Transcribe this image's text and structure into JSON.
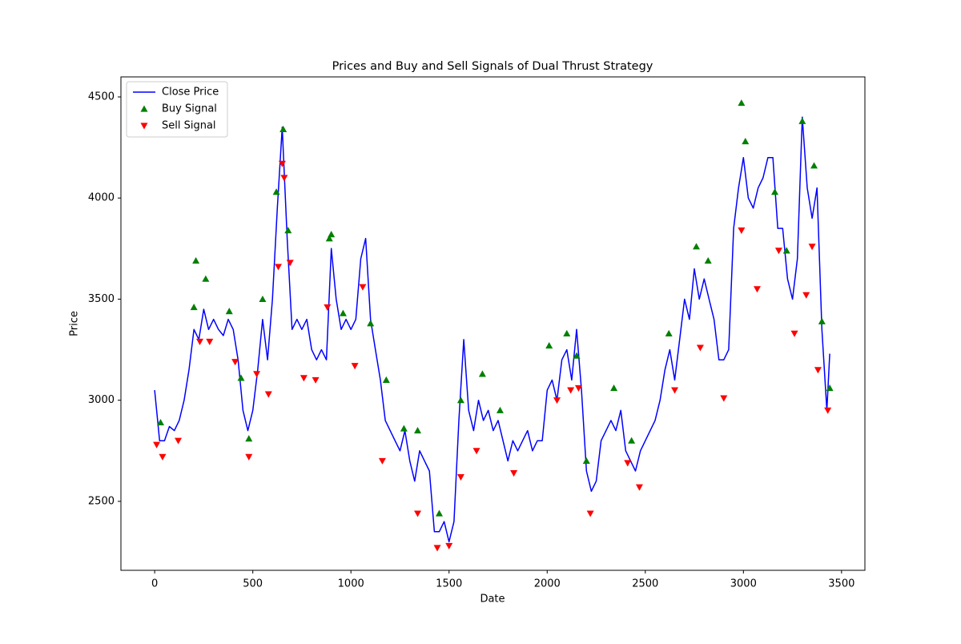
{
  "chart_data": {
    "type": "line",
    "title": "Prices and Buy and Sell Signals of Dual Thrust Strategy",
    "x_label": "Date",
    "y_label": "Price",
    "xlim": [
      -172,
      3619
    ],
    "ylim": [
      2159,
      4599
    ],
    "xticks": [
      0,
      500,
      1000,
      1500,
      2000,
      2500,
      3000,
      3500
    ],
    "yticks": [
      2500,
      3000,
      3500,
      4000,
      4500
    ],
    "grid": false,
    "legend": "upper left",
    "series": [
      {
        "name": "Close Price",
        "type": "line",
        "color": "#0000ff",
        "x": [
          0,
          25,
          50,
          75,
          100,
          125,
          150,
          175,
          200,
          225,
          250,
          275,
          300,
          325,
          350,
          375,
          400,
          425,
          450,
          475,
          500,
          525,
          550,
          575,
          600,
          625,
          650,
          675,
          700,
          725,
          750,
          775,
          800,
          825,
          850,
          875,
          900,
          925,
          950,
          975,
          1000,
          1025,
          1050,
          1075,
          1100,
          1125,
          1150,
          1175,
          1200,
          1225,
          1250,
          1275,
          1300,
          1325,
          1350,
          1375,
          1400,
          1425,
          1450,
          1475,
          1500,
          1525,
          1550,
          1575,
          1600,
          1625,
          1650,
          1675,
          1700,
          1725,
          1750,
          1775,
          1800,
          1825,
          1850,
          1875,
          1900,
          1925,
          1950,
          1975,
          2000,
          2025,
          2050,
          2075,
          2100,
          2125,
          2150,
          2175,
          2200,
          2225,
          2250,
          2275,
          2300,
          2325,
          2350,
          2375,
          2400,
          2425,
          2450,
          2475,
          2500,
          2525,
          2550,
          2575,
          2600,
          2625,
          2650,
          2675,
          2700,
          2725,
          2750,
          2775,
          2800,
          2825,
          2850,
          2875,
          2900,
          2925,
          2950,
          2975,
          3000,
          3025,
          3050,
          3075,
          3100,
          3125,
          3150,
          3175,
          3200,
          3225,
          3250,
          3275,
          3300,
          3325,
          3350,
          3375,
          3400,
          3425,
          3440
        ],
        "values": [
          3050,
          2800,
          2800,
          2870,
          2850,
          2900,
          3000,
          3150,
          3350,
          3300,
          3450,
          3350,
          3400,
          3350,
          3320,
          3400,
          3350,
          3200,
          2950,
          2850,
          2950,
          3150,
          3400,
          3200,
          3500,
          3950,
          4350,
          3800,
          3350,
          3400,
          3350,
          3400,
          3250,
          3200,
          3250,
          3200,
          3750,
          3500,
          3350,
          3400,
          3350,
          3400,
          3700,
          3800,
          3400,
          3250,
          3100,
          2900,
          2850,
          2800,
          2750,
          2850,
          2700,
          2600,
          2750,
          2700,
          2650,
          2350,
          2350,
          2400,
          2300,
          2400,
          2900,
          3300,
          2950,
          2850,
          3000,
          2900,
          2950,
          2850,
          2900,
          2800,
          2700,
          2800,
          2750,
          2800,
          2850,
          2750,
          2800,
          2800,
          3050,
          3100,
          3000,
          3200,
          3250,
          3100,
          3350,
          3050,
          2650,
          2550,
          2600,
          2800,
          2850,
          2900,
          2850,
          2950,
          2750,
          2700,
          2650,
          2750,
          2800,
          2850,
          2900,
          3000,
          3150,
          3250,
          3100,
          3300,
          3500,
          3400,
          3650,
          3500,
          3600,
          3500,
          3400,
          3200,
          3200,
          3250,
          3850,
          4050,
          4200,
          4000,
          3950,
          4050,
          4100,
          4200,
          4200,
          3850,
          3850,
          3600,
          3500,
          3700,
          4400,
          4050,
          3900,
          4050,
          3350,
          2950,
          3230
        ]
      },
      {
        "name": "Buy Signal",
        "type": "scatter",
        "marker": "triangle-up",
        "color": "#008000",
        "x": [
          30,
          200,
          210,
          260,
          380,
          440,
          480,
          550,
          620,
          655,
          680,
          890,
          900,
          960,
          1100,
          1180,
          1270,
          1340,
          1450,
          1560,
          1670,
          1760,
          2010,
          2100,
          2150,
          2200,
          2340,
          2430,
          2620,
          2760,
          2820,
          2990,
          3010,
          3160,
          3220,
          3300,
          3360,
          3400,
          3440
        ],
        "values": [
          2890,
          3460,
          3690,
          3600,
          3440,
          3110,
          2810,
          3500,
          4030,
          4340,
          3840,
          3800,
          3820,
          3430,
          3380,
          3100,
          2860,
          2850,
          2440,
          3000,
          3130,
          2950,
          3270,
          3330,
          3220,
          2700,
          3060,
          2800,
          3330,
          3760,
          3690,
          4470,
          4280,
          4030,
          3740,
          4380,
          4160,
          3390,
          3060
        ]
      },
      {
        "name": "Sell Signal",
        "type": "scatter",
        "marker": "triangle-down",
        "color": "#ff0000",
        "x": [
          10,
          40,
          120,
          230,
          280,
          410,
          480,
          520,
          580,
          630,
          650,
          660,
          690,
          760,
          820,
          880,
          1020,
          1060,
          1160,
          1340,
          1440,
          1500,
          1560,
          1640,
          1830,
          2050,
          2120,
          2160,
          2220,
          2410,
          2470,
          2650,
          2780,
          2900,
          2990,
          3070,
          3180,
          3260,
          3320,
          3350,
          3380,
          3430
        ],
        "values": [
          2780,
          2720,
          2800,
          3290,
          3290,
          3190,
          2720,
          3130,
          3030,
          3660,
          4170,
          4100,
          3680,
          3110,
          3100,
          3460,
          3170,
          3560,
          2700,
          2440,
          2270,
          2280,
          2620,
          2750,
          2640,
          3000,
          3050,
          3060,
          2440,
          2690,
          2570,
          3050,
          3260,
          3010,
          3840,
          3550,
          3740,
          3330,
          3520,
          3760,
          3150,
          2950
        ]
      }
    ]
  }
}
